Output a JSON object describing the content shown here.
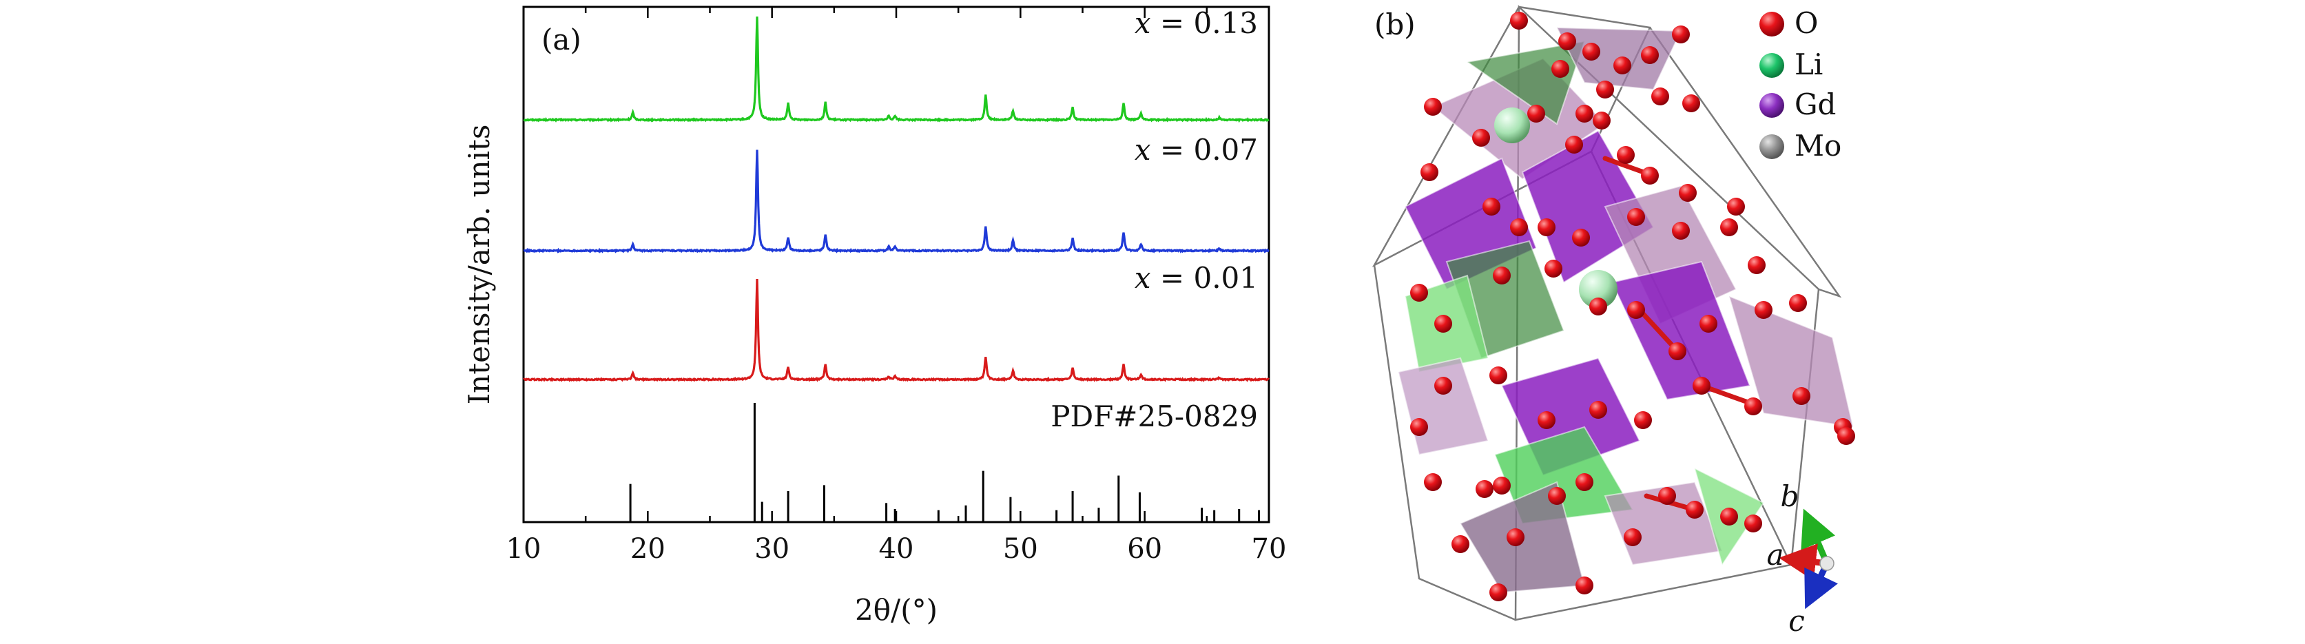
{
  "panel_a": {
    "label": "(a)",
    "pdf_label": "PDF#25-0829"
  },
  "panel_b": {
    "label": "(b)",
    "legend": [
      {
        "name": "O",
        "color": "#e8141a"
      },
      {
        "name": "Li",
        "color": "#1ec46a"
      },
      {
        "name": "Gd",
        "color": "#8b2fc0"
      },
      {
        "name": "Mo",
        "color": "#959595"
      }
    ],
    "axes_labels": {
      "a": "a",
      "b": "b",
      "c": "c"
    },
    "axis_colors": {
      "a": "#d41a1a",
      "b": "#22b022",
      "c": "#1a2fc0"
    }
  },
  "chart_data": {
    "type": "line",
    "xlabel": "2θ/(°)",
    "ylabel": "Intensity/arb. units",
    "xlim": [
      10,
      70
    ],
    "xticks": [
      10,
      20,
      30,
      40,
      50,
      60,
      70
    ],
    "series": [
      {
        "name": "x = 0.13",
        "label_prefix": "x",
        "label_value": "= 0.13",
        "color": "#1ec81e",
        "offset": 2.0,
        "peaks": [
          [
            18.8,
            0.07
          ],
          [
            28.8,
            1.0
          ],
          [
            31.3,
            0.16
          ],
          [
            34.3,
            0.17
          ],
          [
            39.4,
            0.04
          ],
          [
            39.9,
            0.04
          ],
          [
            47.2,
            0.24
          ],
          [
            49.4,
            0.09
          ],
          [
            54.2,
            0.12
          ],
          [
            58.3,
            0.16
          ],
          [
            59.7,
            0.06
          ],
          [
            66.0,
            0.02
          ]
        ]
      },
      {
        "name": "x = 0.07",
        "label_prefix": "x",
        "label_value": "= 0.07",
        "color": "#1f3ad8",
        "offset": 1.0,
        "peaks": [
          [
            18.8,
            0.06
          ],
          [
            28.8,
            0.98
          ],
          [
            31.3,
            0.13
          ],
          [
            34.3,
            0.16
          ],
          [
            39.4,
            0.04
          ],
          [
            39.9,
            0.04
          ],
          [
            47.2,
            0.24
          ],
          [
            49.4,
            0.1
          ],
          [
            54.2,
            0.12
          ],
          [
            58.3,
            0.18
          ],
          [
            59.7,
            0.06
          ],
          [
            66.0,
            0.02
          ]
        ]
      },
      {
        "name": "x = 0.01",
        "label_prefix": "x",
        "label_value": "= 0.01",
        "color": "#d81a1a",
        "offset": 0.0,
        "peaks": [
          [
            18.8,
            0.06
          ],
          [
            28.8,
            0.97
          ],
          [
            31.3,
            0.12
          ],
          [
            34.3,
            0.15
          ],
          [
            39.4,
            0.03
          ],
          [
            39.9,
            0.03
          ],
          [
            47.2,
            0.22
          ],
          [
            49.4,
            0.09
          ],
          [
            54.2,
            0.11
          ],
          [
            58.3,
            0.15
          ],
          [
            59.7,
            0.05
          ],
          [
            66.0,
            0.02
          ]
        ]
      }
    ],
    "reference": {
      "name": "PDF#25-0829",
      "color": "#000000",
      "sticks": [
        [
          18.6,
          0.32
        ],
        [
          28.6,
          1.0
        ],
        [
          29.2,
          0.17
        ],
        [
          31.3,
          0.26
        ],
        [
          34.2,
          0.31
        ],
        [
          39.2,
          0.16
        ],
        [
          39.9,
          0.11
        ],
        [
          43.4,
          0.1
        ],
        [
          45.6,
          0.14
        ],
        [
          47.0,
          0.43
        ],
        [
          49.2,
          0.21
        ],
        [
          52.9,
          0.1
        ],
        [
          54.2,
          0.26
        ],
        [
          56.3,
          0.12
        ],
        [
          57.9,
          0.39
        ],
        [
          59.6,
          0.25
        ],
        [
          64.6,
          0.12
        ],
        [
          65.6,
          0.1
        ],
        [
          67.6,
          0.11
        ],
        [
          69.2,
          0.1
        ]
      ]
    }
  }
}
